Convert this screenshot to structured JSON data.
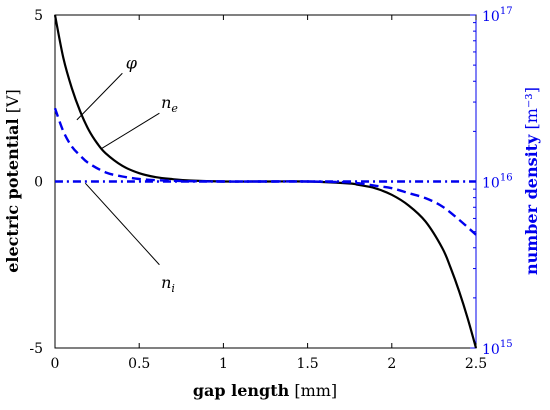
{
  "chart_data": {
    "type": "line",
    "xlabel_bold": "gap length",
    "xlabel_unit": "[mm]",
    "ylabel_left_bold": "electric potential",
    "ylabel_left_unit": "[V]",
    "ylabel_right_bold": "number density",
    "ylabel_right_unit": "[m⁻³]",
    "xlim": [
      0,
      2.5
    ],
    "ylim_left": [
      -5,
      5
    ],
    "ylim_right_log10": [
      15,
      17
    ],
    "x_ticks": [
      "0",
      "0.5",
      "1",
      "1.5",
      "2",
      "2.5"
    ],
    "y_left_ticks": [
      "5",
      "0",
      "-5"
    ],
    "y_right_ticks": [
      "10",
      "10",
      "10"
    ],
    "y_right_tick_exps": [
      "17",
      "16",
      "15"
    ],
    "grid": false,
    "colors": {
      "phi": "#000000",
      "ne": "#0000ee",
      "ni": "#0000ee",
      "right_axis": "#0000ee"
    },
    "series": [
      {
        "name": "φ",
        "axis": "left",
        "style": "solid",
        "x": [
          0,
          0.05,
          0.1,
          0.15,
          0.2,
          0.25,
          0.3,
          0.4,
          0.5,
          0.6,
          0.7,
          0.8,
          1.0,
          1.25,
          1.5,
          1.75,
          1.8,
          1.9,
          2.0,
          2.1,
          2.2,
          2.3,
          2.35,
          2.4,
          2.45,
          2.5
        ],
        "y": [
          5.0,
          3.7,
          2.8,
          2.1,
          1.55,
          1.15,
          0.85,
          0.47,
          0.25,
          0.13,
          0.07,
          0.03,
          0.0,
          0.0,
          0.0,
          -0.06,
          -0.1,
          -0.2,
          -0.4,
          -0.72,
          -1.2,
          -2.0,
          -2.6,
          -3.3,
          -4.1,
          -5.0
        ]
      },
      {
        "name": "n_e",
        "axis": "right",
        "style": "dashed",
        "x": [
          0,
          0.05,
          0.1,
          0.15,
          0.2,
          0.3,
          0.4,
          0.5,
          0.6,
          0.7,
          0.8,
          1.0,
          1.25,
          1.5,
          1.75,
          1.8,
          1.9,
          2.0,
          2.1,
          2.2,
          2.3,
          2.4,
          2.5
        ],
        "log10y": [
          16.44,
          16.3,
          16.21,
          16.155,
          16.11,
          16.055,
          16.03,
          16.015,
          16.008,
          16.004,
          16.002,
          16.0,
          16.0,
          16.0,
          15.995,
          15.99,
          15.975,
          15.96,
          15.93,
          15.9,
          15.85,
          15.77,
          15.68
        ]
      },
      {
        "name": "n_i",
        "axis": "right",
        "style": "dashdot",
        "x": [
          0,
          2.5
        ],
        "log10y": [
          16.0,
          16.0
        ]
      }
    ],
    "annotations": [
      {
        "text": "φ",
        "sub": ""
      },
      {
        "text": "n",
        "sub": "e"
      },
      {
        "text": "n",
        "sub": "i"
      }
    ]
  }
}
